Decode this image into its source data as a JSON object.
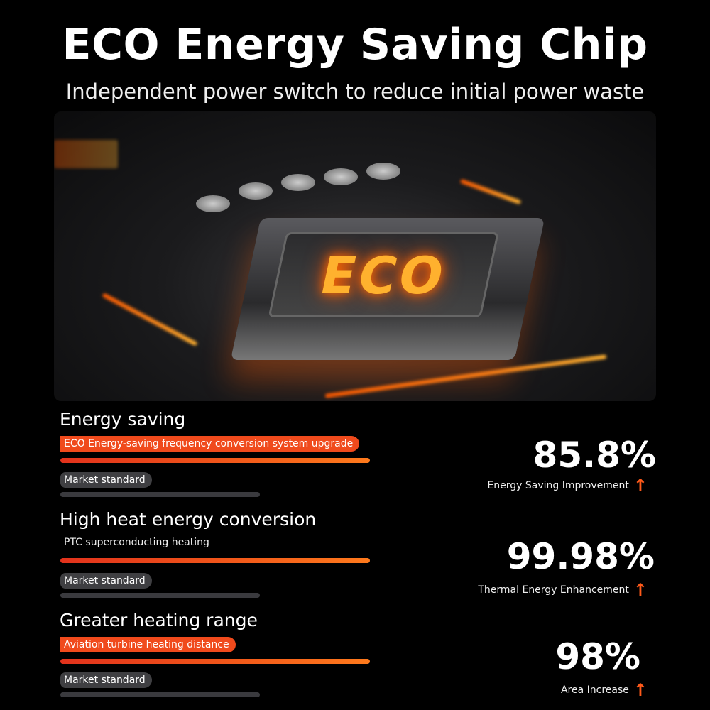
{
  "title": "ECO Energy Saving Chip",
  "subtitle": "Independent power switch to reduce initial power waste",
  "hero": {
    "chip_label": "ECO"
  },
  "sections": [
    {
      "heading": "Energy saving",
      "feature": "ECO Energy-saving frequency conversion system upgrade",
      "standard": "Market standard"
    },
    {
      "heading": "High heat energy conversion",
      "feature": "PTC superconducting heating",
      "standard": "Market standard"
    },
    {
      "heading": "Greater heating range",
      "feature": "Aviation turbine heating distance",
      "standard": "Market standard"
    }
  ],
  "stats": [
    {
      "value": "85.8%",
      "label": "Energy Saving Improvement",
      "icon": "arrow-up-icon"
    },
    {
      "value": "99.98%",
      "label": "Thermal Energy Enhancement",
      "icon": "arrow-up-icon"
    },
    {
      "value": "98%",
      "label": "Area Increase",
      "icon": "arrow-up-icon"
    }
  ],
  "colors": {
    "accent": "#f04a1c",
    "grey": "#3f3f42",
    "background": "#000000"
  }
}
